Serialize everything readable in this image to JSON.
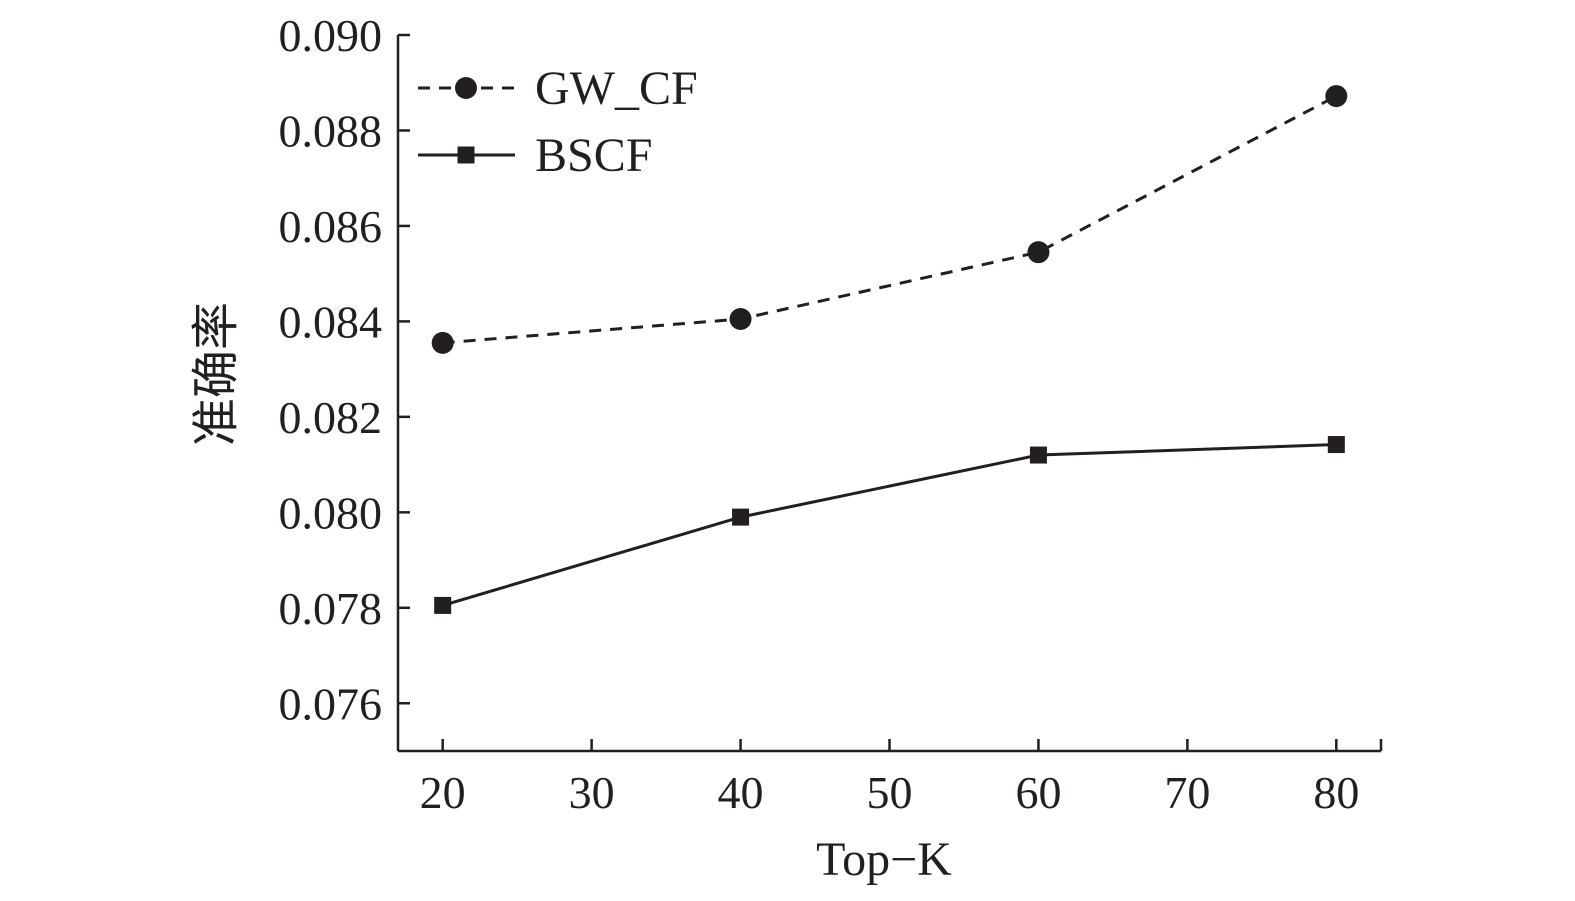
{
  "chart_data": {
    "type": "line",
    "title": "",
    "xlabel": "Top−K",
    "ylabel": "准确率",
    "x": [
      20,
      40,
      60,
      80
    ],
    "xlim": [
      17,
      83
    ],
    "xticks": [
      "20",
      "30",
      "40",
      "50",
      "60",
      "70",
      "80"
    ],
    "xtick_values": [
      20,
      30,
      40,
      50,
      60,
      70,
      80
    ],
    "ylim": [
      0.075,
      0.09
    ],
    "yticks": [
      "0.076",
      "0.078",
      "0.080",
      "0.082",
      "0.084",
      "0.086",
      "0.088",
      "0.090"
    ],
    "ytick_values": [
      0.076,
      0.078,
      0.08,
      0.082,
      0.084,
      0.086,
      0.088,
      0.09
    ],
    "grid": false,
    "legend_position": "top-left",
    "series": [
      {
        "name": "GW_CF",
        "values": [
          0.08355,
          0.08405,
          0.08545,
          0.08872
        ],
        "line_style": "dashed",
        "marker": "circle",
        "color": "#231f20"
      },
      {
        "name": "BSCF",
        "values": [
          0.07805,
          0.0799,
          0.0812,
          0.08142
        ],
        "line_style": "solid",
        "marker": "square",
        "color": "#231f20"
      }
    ]
  }
}
